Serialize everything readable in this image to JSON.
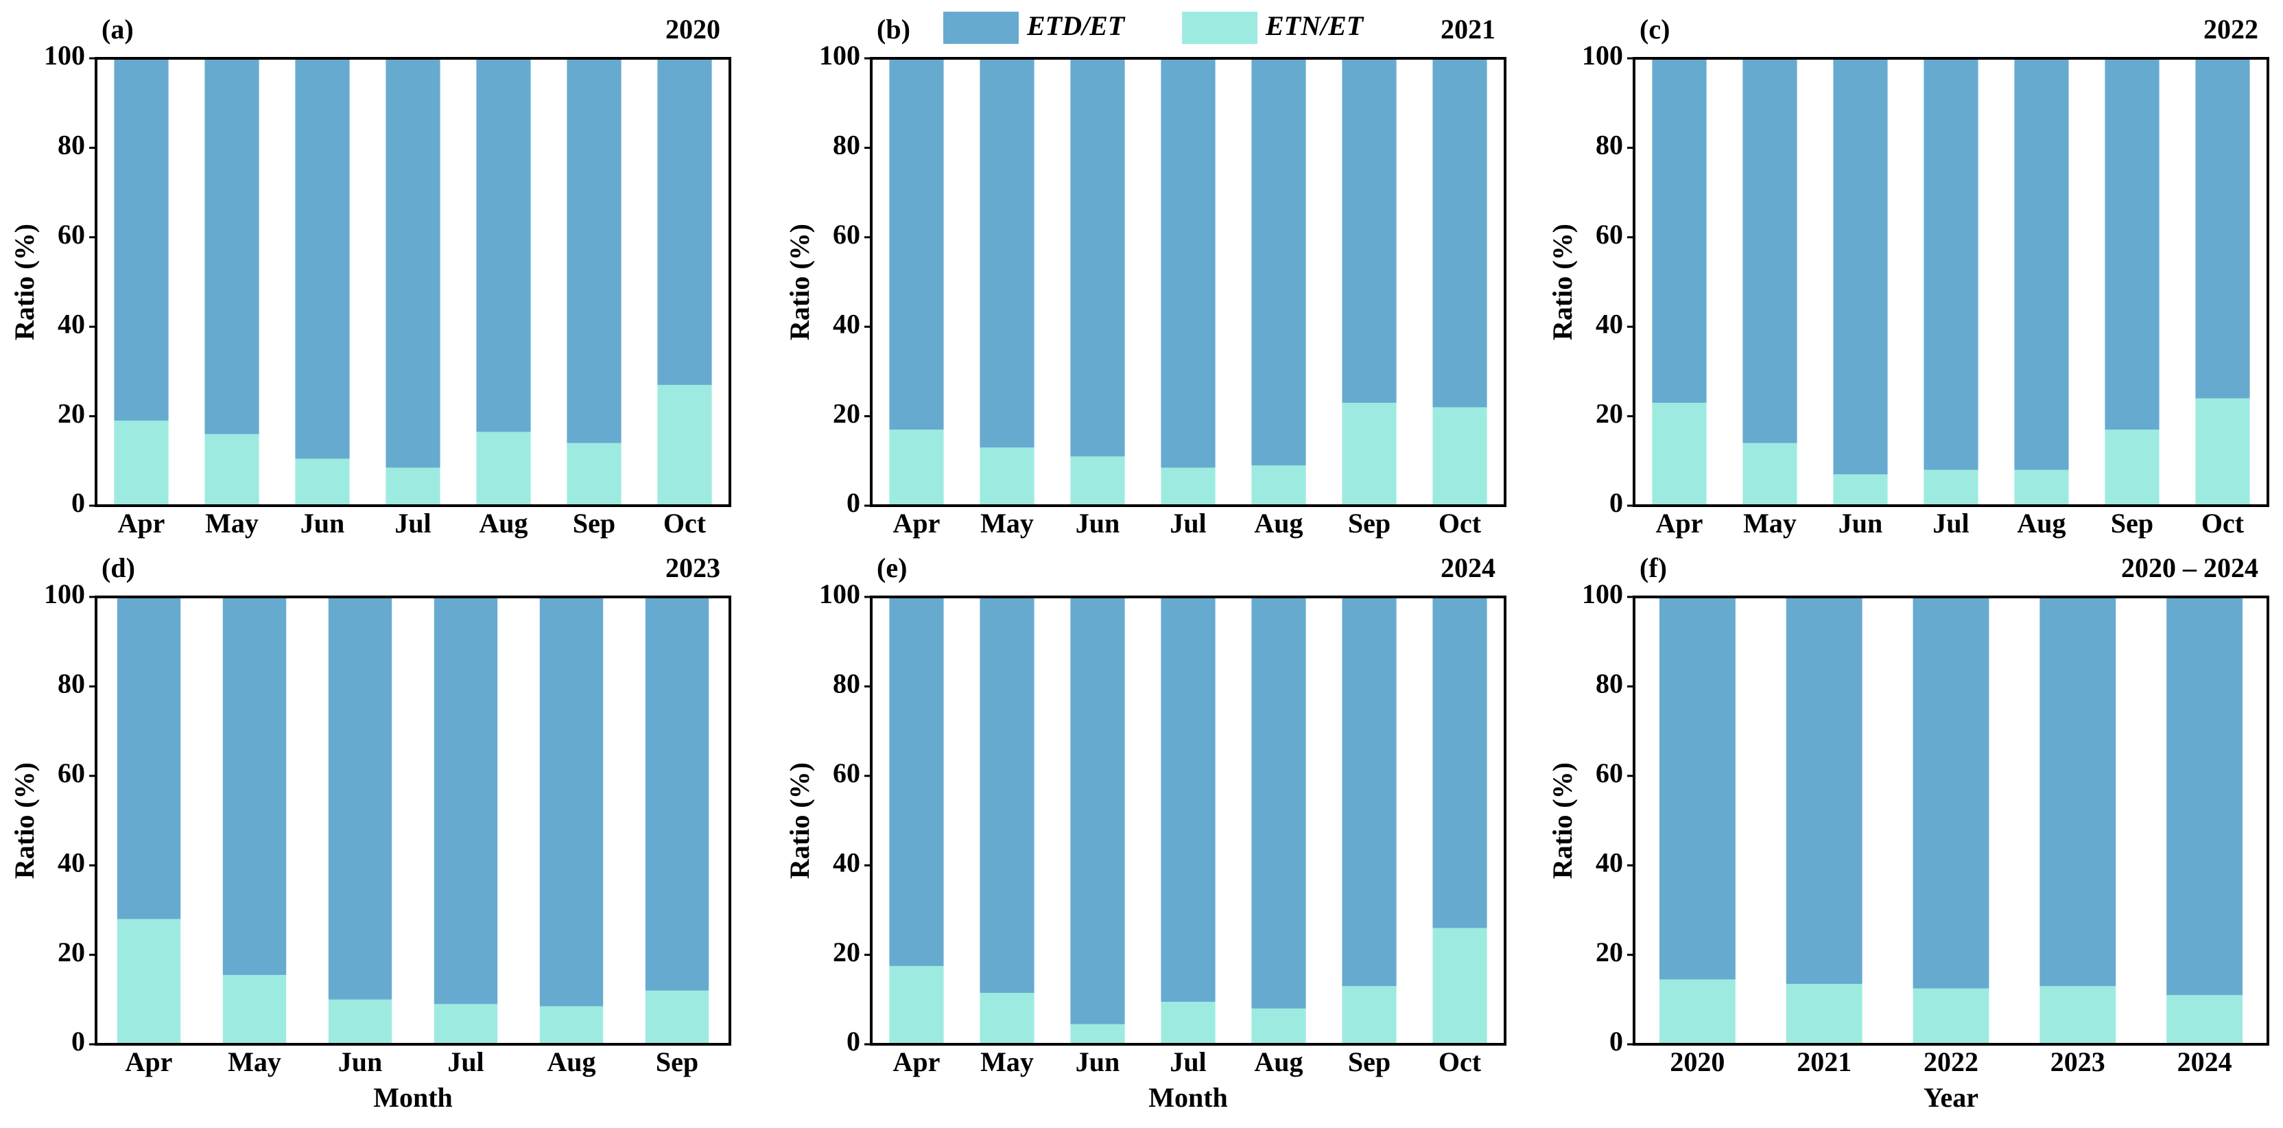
{
  "chart_data": [
    {
      "type": "bar",
      "stacked": true,
      "panel_label": "(a)",
      "title": "2020",
      "ylabel": "Ratio (%)",
      "categories": [
        "Apr",
        "May",
        "Jun",
        "Jul",
        "Aug",
        "Sep",
        "Oct"
      ],
      "series": [
        {
          "color": "#67aacf",
          "values": [
            81,
            84,
            89.5,
            91.5,
            83.5,
            86,
            73
          ]
        },
        {
          "color": "#9debe0",
          "values": [
            19,
            16,
            10.5,
            8.5,
            16.5,
            14,
            27
          ]
        }
      ],
      "ylim": [
        0,
        100
      ],
      "yticks": [
        0,
        20,
        40,
        60,
        80,
        100
      ]
    },
    {
      "type": "bar",
      "stacked": true,
      "panel_label": "(b)",
      "title": "2021",
      "ylabel": "Ratio (%)",
      "categories": [
        "Apr",
        "May",
        "Jun",
        "Jul",
        "Aug",
        "Sep",
        "Oct"
      ],
      "series": [
        {
          "name": "ETD/ET",
          "color": "#67aacf",
          "values": [
            83,
            87,
            89,
            91.5,
            91,
            77,
            78
          ]
        },
        {
          "name": "ETN/ET",
          "color": "#9debe0",
          "values": [
            17,
            13,
            11,
            8.5,
            9,
            23,
            22
          ]
        }
      ],
      "ylim": [
        0,
        100
      ],
      "yticks": [
        0,
        20,
        40,
        60,
        80,
        100
      ]
    },
    {
      "type": "bar",
      "stacked": true,
      "panel_label": "(c)",
      "title": "2022",
      "ylabel": "Ratio (%)",
      "categories": [
        "Apr",
        "May",
        "Jun",
        "Jul",
        "Aug",
        "Sep",
        "Oct"
      ],
      "series": [
        {
          "color": "#67aacf",
          "values": [
            77,
            86,
            93,
            92,
            92,
            83,
            76
          ]
        },
        {
          "color": "#9debe0",
          "values": [
            23,
            14,
            7,
            8,
            8,
            17,
            24
          ]
        }
      ],
      "ylim": [
        0,
        100
      ],
      "yticks": [
        0,
        20,
        40,
        60,
        80,
        100
      ]
    },
    {
      "type": "bar",
      "stacked": true,
      "panel_label": "(d)",
      "title": "2023",
      "ylabel": "Ratio (%)",
      "xlabel": "Month",
      "categories": [
        "Apr",
        "May",
        "Jun",
        "Jul",
        "Aug",
        "Sep"
      ],
      "series": [
        {
          "color": "#67aacf",
          "values": [
            72,
            84.5,
            90,
            91,
            91.5,
            88
          ]
        },
        {
          "color": "#9debe0",
          "values": [
            28,
            15.5,
            10,
            9,
            8.5,
            12
          ]
        }
      ],
      "ylim": [
        0,
        100
      ],
      "yticks": [
        0,
        20,
        40,
        60,
        80,
        100
      ]
    },
    {
      "type": "bar",
      "stacked": true,
      "panel_label": "(e)",
      "title": "2024",
      "ylabel": "Ratio (%)",
      "xlabel": "Month",
      "categories": [
        "Apr",
        "May",
        "Jun",
        "Jul",
        "Aug",
        "Sep",
        "Oct"
      ],
      "series": [
        {
          "color": "#67aacf",
          "values": [
            82.5,
            88.5,
            95.5,
            90.5,
            92,
            87,
            74
          ]
        },
        {
          "color": "#9debe0",
          "values": [
            17.5,
            11.5,
            4.5,
            9.5,
            8,
            13,
            26
          ]
        }
      ],
      "ylim": [
        0,
        100
      ],
      "yticks": [
        0,
        20,
        40,
        60,
        80,
        100
      ]
    },
    {
      "type": "bar",
      "stacked": true,
      "panel_label": "(f)",
      "title": "2020 – 2024",
      "ylabel": "Ratio (%)",
      "xlabel": "Year",
      "categories": [
        "2020",
        "2021",
        "2022",
        "2023",
        "2024"
      ],
      "series": [
        {
          "color": "#67aacf",
          "values": [
            85.5,
            86.5,
            87.5,
            87,
            89
          ]
        },
        {
          "color": "#9debe0",
          "values": [
            14.5,
            13.5,
            12.5,
            13,
            11
          ]
        }
      ],
      "ylim": [
        0,
        100
      ],
      "yticks": [
        0,
        20,
        40,
        60,
        80,
        100
      ]
    }
  ]
}
